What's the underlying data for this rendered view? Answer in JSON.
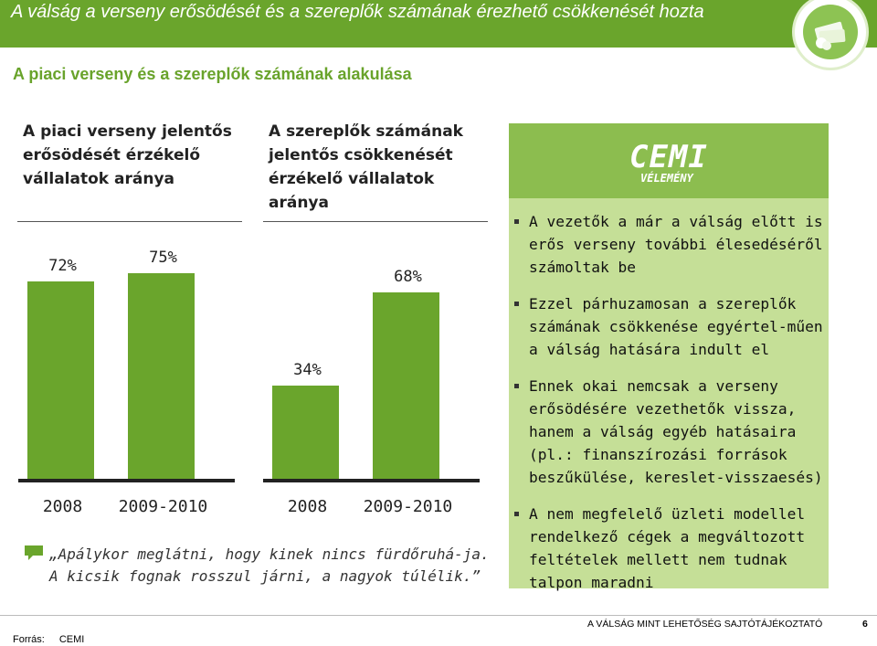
{
  "header": {
    "title": "A válság a verseny erősödését és a szereplők számának érezhető csökkenését hozta",
    "accent_color": "#6aa52c"
  },
  "subtitle": "A piaci verseny és a szereplők számának alakulása",
  "chart_data": [
    {
      "type": "bar",
      "title": "A piaci verseny jelentős erősödését érzékelő vállalatok aránya",
      "categories": [
        "2008",
        "2009-2010"
      ],
      "values": [
        72,
        75
      ],
      "value_labels": [
        "72%",
        "75%"
      ],
      "unit": "%",
      "ylim": [
        0,
        80
      ],
      "grid": false,
      "bar_color": "#6aa52c"
    },
    {
      "type": "bar",
      "title": "A szereplők számának jelentős csökkenését érzékelő vállalatok aránya",
      "categories": [
        "2008",
        "2009-2010"
      ],
      "values": [
        34,
        68
      ],
      "value_labels": [
        "34%",
        "68%"
      ],
      "unit": "%",
      "ylim": [
        0,
        80
      ],
      "grid": false,
      "bar_color": "#6aa52c"
    }
  ],
  "quote": "„Apálykor meglátni, hogy kinek nincs fürdőruhá-ja. A kicsik fognak rosszul járni, a nagyok túlélik.”",
  "panel": {
    "logo_text": "CEMI",
    "logo_subtext": "VÉLEMÉNY",
    "bullets": [
      "A vezetők a már a válság előtt is erős verseny további élesedéséről számoltak be",
      "Ezzel párhuzamosan a szereplők számának csökkenése egyértel-műen a válság hatására indult el",
      "Ennek okai nemcsak a verseny erősödésére vezethetők vissza, hanem a válság egyéb hatásaira (pl.: finanszírozási források beszűkülése, kereslet-visszaesés)",
      "A nem megfelelő üzleti modellel rendelkező cégek a megváltozott feltételek mellett nem tudnak talpon maradni"
    ]
  },
  "footer": {
    "caption": "A VÁLSÁG MINT LEHETŐSÉG SAJTÓTÁJÉKOZTATÓ",
    "page": "6",
    "source_label": "Forrás:",
    "source_value": "CEMI"
  }
}
